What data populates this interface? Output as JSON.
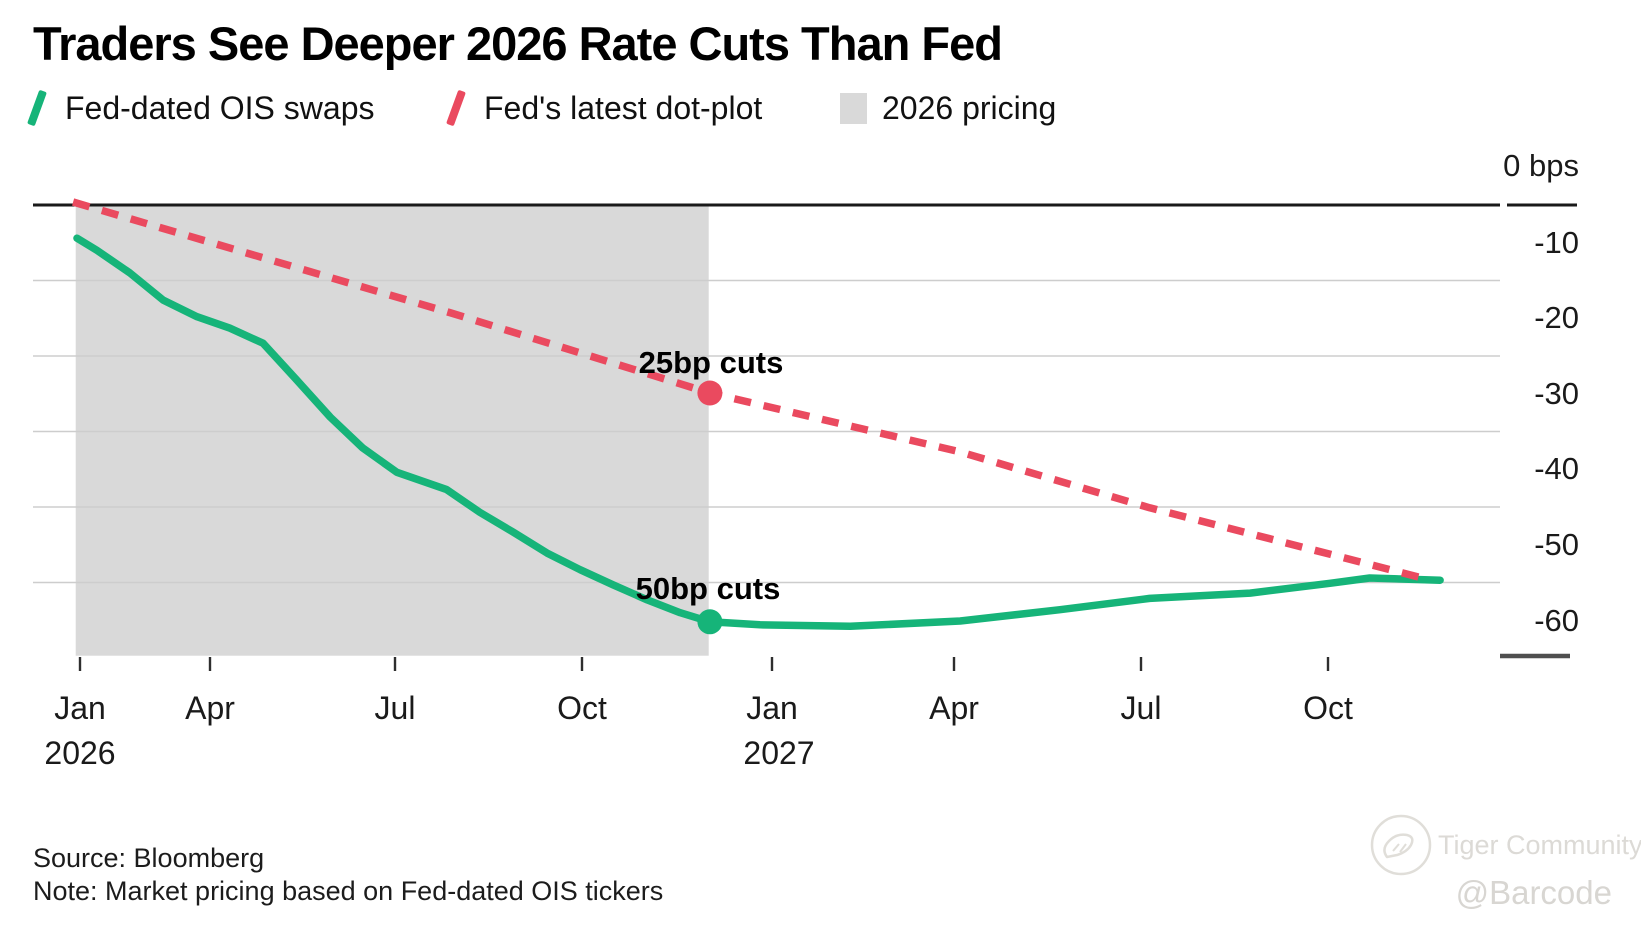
{
  "title": "Traders See Deeper 2026 Rate Cuts Than Fed",
  "legend": {
    "items": [
      {
        "label": "Fed-dated OIS swaps",
        "color": "#16b479",
        "swatch": "slash"
      },
      {
        "label": "Fed's latest dot-plot",
        "color": "#ea4a5f",
        "swatch": "slash"
      },
      {
        "label": "2026 pricing",
        "color": "#d9d9d9",
        "swatch": "square"
      }
    ]
  },
  "chart_data": {
    "type": "line",
    "title": "Traders See Deeper 2026 Rate Cuts Than Fed",
    "x_axis": {
      "unit": "months from Jan 2026",
      "tick_labels": [
        "Jan",
        "Apr",
        "Jul",
        "Oct",
        "Jan",
        "Apr",
        "Jul",
        "Oct"
      ],
      "tick_months": [
        0,
        3,
        6,
        9,
        12,
        15,
        18,
        21
      ],
      "year_labels": [
        {
          "text": "2026"
        },
        {
          "text": "2027"
        }
      ]
    },
    "y_axis": {
      "unit": "bps",
      "top_label": "0 bps",
      "tick_labels": [
        "-10",
        "-20",
        "-30",
        "-40",
        "-50",
        "-60"
      ],
      "tick_values": [
        -10,
        -20,
        -30,
        -40,
        -50,
        -60
      ],
      "gridline_values": [
        -10,
        -20,
        -30,
        -40,
        -50
      ],
      "range": [
        0,
        -60
      ],
      "grid": true
    },
    "series": [
      {
        "name": "Fed-dated OIS swaps",
        "color": "#16b479",
        "style": "solid",
        "points": [
          [
            -0.07,
            -4.4
          ],
          [
            0.39,
            -6.0
          ],
          [
            1.15,
            -9.0
          ],
          [
            1.92,
            -12.6
          ],
          [
            2.7,
            -14.8
          ],
          [
            3.32,
            -16.3
          ],
          [
            3.86,
            -18.3
          ],
          [
            4.41,
            -23.2
          ],
          [
            4.95,
            -28.1
          ],
          [
            5.48,
            -32.2
          ],
          [
            6.03,
            -35.4
          ],
          [
            6.83,
            -37.7
          ],
          [
            7.36,
            -40.7
          ],
          [
            7.89,
            -43.3
          ],
          [
            8.44,
            -46.1
          ],
          [
            8.97,
            -48.3
          ],
          [
            9.49,
            -50.3
          ],
          [
            10.03,
            -52.3
          ],
          [
            10.55,
            -54.0
          ],
          [
            11.02,
            -55.2
          ],
          [
            11.81,
            -55.6
          ],
          [
            13.29,
            -55.8
          ],
          [
            15.1,
            -55.1
          ],
          [
            16.7,
            -53.6
          ],
          [
            18.14,
            -52.1
          ],
          [
            19.75,
            -51.4
          ],
          [
            21.03,
            -50.1
          ],
          [
            21.67,
            -49.4
          ],
          [
            22.8,
            -49.7
          ]
        ]
      },
      {
        "name": "Fed's latest dot-plot",
        "color": "#ea4a5f",
        "style": "dashed",
        "points": [
          [
            -0.16,
            0.4
          ],
          [
            6.9,
            -14.3
          ],
          [
            11.02,
            -24.9
          ],
          [
            15.1,
            -32.7
          ],
          [
            18.14,
            -40.1
          ],
          [
            22.65,
            -49.7
          ]
        ]
      }
    ],
    "markers": [
      {
        "series": "Fed's latest dot-plot",
        "m": 11.02,
        "bps": -24.9,
        "color": "#ea4a5f",
        "label": "25bp cuts"
      },
      {
        "series": "Fed-dated OIS swaps",
        "m": 11.02,
        "bps": -55.2,
        "color": "#16b479",
        "label": "50bp cuts"
      }
    ],
    "shaded_region": {
      "label": "2026 pricing",
      "from_m": -0.1,
      "to_m": 11.0,
      "top_bps": 0,
      "bottom_bps": -59.7,
      "color": "#d9d9d9"
    },
    "legend_position": "top"
  },
  "footer": {
    "source": "Source: Bloomberg",
    "note": "Note: Market pricing based on Fed-dated OIS tickers"
  },
  "watermark": {
    "name": "Tiger Community",
    "handle": "@Barcode"
  }
}
